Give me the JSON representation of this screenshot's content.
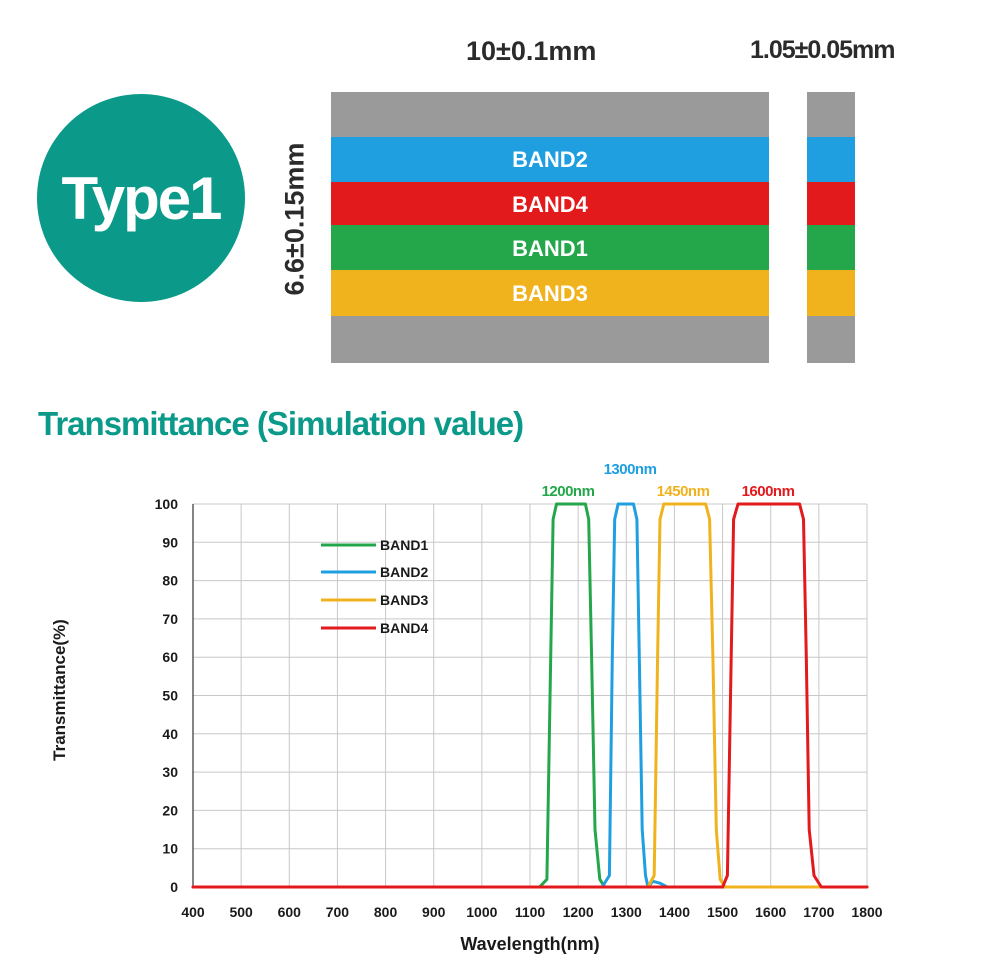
{
  "badge": {
    "label": "Type1",
    "color": "#0b9a8a"
  },
  "dimensions": {
    "length": "10±0.1mm",
    "thickness": "1.05±0.05mm",
    "height": "6.6±0.15mm"
  },
  "filter": {
    "frame_color": "#9a9a9a",
    "bands": [
      {
        "label": "BAND2",
        "color": "#1f9fe0"
      },
      {
        "label": "BAND4",
        "color": "#e31a1c"
      },
      {
        "label": "BAND1",
        "color": "#23a74a"
      },
      {
        "label": "BAND3",
        "color": "#f0b31e"
      }
    ]
  },
  "title": {
    "text": "Transmittance (Simulation value)",
    "color": "#0b9a8a"
  },
  "chart_data": {
    "type": "line",
    "xlabel": "Wavelength(nm)",
    "ylabel": "Transmittance(%)",
    "xlim": [
      400,
      1800
    ],
    "ylim": [
      0,
      100
    ],
    "xticks": [
      400,
      500,
      600,
      700,
      800,
      900,
      1000,
      1100,
      1200,
      1300,
      1400,
      1500,
      1600,
      1700,
      1800
    ],
    "yticks": [
      0,
      10,
      20,
      30,
      40,
      50,
      60,
      70,
      80,
      90,
      100
    ],
    "grid": true,
    "legend_position": "top-left",
    "series": [
      {
        "name": "BAND1",
        "color": "#23a74a",
        "x": [
          400,
          1120,
          1135,
          1143,
          1148,
          1155,
          1215,
          1222,
          1228,
          1235,
          1245,
          1255,
          1800
        ],
        "y": [
          0,
          0,
          2,
          60,
          96,
          100,
          100,
          96,
          60,
          15,
          2,
          0,
          0
        ]
      },
      {
        "name": "BAND2",
        "color": "#1f9fe0",
        "x": [
          400,
          1250,
          1265,
          1271,
          1276,
          1283,
          1315,
          1322,
          1327,
          1333,
          1340,
          1345,
          1355,
          1370,
          1385,
          1800
        ],
        "y": [
          0,
          0,
          3,
          60,
          96,
          100,
          100,
          96,
          60,
          15,
          3,
          0,
          1.5,
          1,
          0,
          0
        ]
      },
      {
        "name": "BAND3",
        "color": "#f0b31e",
        "x": [
          400,
          1345,
          1358,
          1365,
          1370,
          1378,
          1465,
          1473,
          1480,
          1487,
          1495,
          1505,
          1800
        ],
        "y": [
          0,
          0,
          3,
          60,
          96,
          100,
          100,
          96,
          60,
          15,
          2,
          0,
          0
        ]
      },
      {
        "name": "BAND4",
        "color": "#e31a1c",
        "x": [
          400,
          1500,
          1510,
          1518,
          1523,
          1532,
          1660,
          1668,
          1674,
          1680,
          1690,
          1705,
          1800
        ],
        "y": [
          0,
          0,
          3,
          60,
          96,
          100,
          100,
          96,
          60,
          15,
          3,
          0,
          0
        ]
      }
    ],
    "annotations": [
      {
        "text": "1200nm",
        "color": "#23a74a"
      },
      {
        "text": "1300nm",
        "color": "#1f9fe0"
      },
      {
        "text": "1450nm",
        "color": "#f0b31e"
      },
      {
        "text": "1600nm",
        "color": "#e31a1c"
      }
    ]
  }
}
